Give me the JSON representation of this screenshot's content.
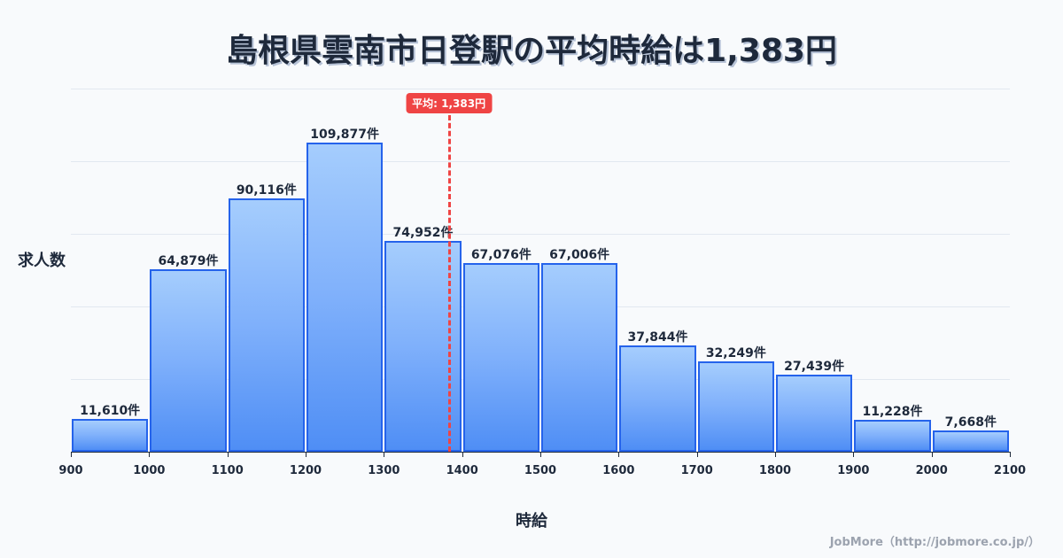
{
  "title": "島根県雲南市日登駅の平均時給は1,383円",
  "ylabel": "求人数",
  "xlabel": "時給",
  "credit": "JobMore（http://jobmore.co.jp/）",
  "mean": {
    "value": 1383,
    "label": "平均: 1,383円",
    "color": "#ef4444"
  },
  "colors": {
    "bar_border": "#2563eb",
    "bar_top": "#a5cdfd",
    "bar_bottom": "#4f8ef5",
    "mean_line": "#ef4444",
    "background": "#f8fafc"
  },
  "chart_data": {
    "type": "bar",
    "title": "島根県雲南市日登駅の平均時給は1,383円",
    "xlabel": "時給",
    "ylabel": "求人数",
    "bins": [
      [
        900,
        1000
      ],
      [
        1000,
        1100
      ],
      [
        1100,
        1200
      ],
      [
        1200,
        1300
      ],
      [
        1300,
        1400
      ],
      [
        1400,
        1500
      ],
      [
        1500,
        1600
      ],
      [
        1600,
        1700
      ],
      [
        1700,
        1800
      ],
      [
        1800,
        1900
      ],
      [
        1900,
        2000
      ],
      [
        2000,
        2100
      ]
    ],
    "categories": [
      "900-1000",
      "1000-1100",
      "1100-1200",
      "1200-1300",
      "1300-1400",
      "1400-1500",
      "1500-1600",
      "1600-1700",
      "1700-1800",
      "1800-1900",
      "1900-2000",
      "2000-2100"
    ],
    "values": [
      11610,
      64879,
      90116,
      109877,
      74952,
      67076,
      67006,
      37844,
      32249,
      27439,
      11228,
      7668
    ],
    "value_labels": [
      "11,610件",
      "64,879件",
      "90,116件",
      "109,877件",
      "74,952件",
      "67,076件",
      "67,006件",
      "37,844件",
      "32,249件",
      "27,439件",
      "11,228件",
      "7,668件"
    ],
    "xticks": [
      "900",
      "1000",
      "1100",
      "1200",
      "1300",
      "1400",
      "1500",
      "1600",
      "1700",
      "1800",
      "1900",
      "2000",
      "2100"
    ],
    "xlim": [
      900,
      2100
    ],
    "ylim": [
      0,
      129100
    ],
    "grid": true,
    "annotations": [
      {
        "type": "vline",
        "x": 1383,
        "label": "平均: 1,383円",
        "style": "dashed",
        "color": "#ef4444"
      }
    ]
  }
}
